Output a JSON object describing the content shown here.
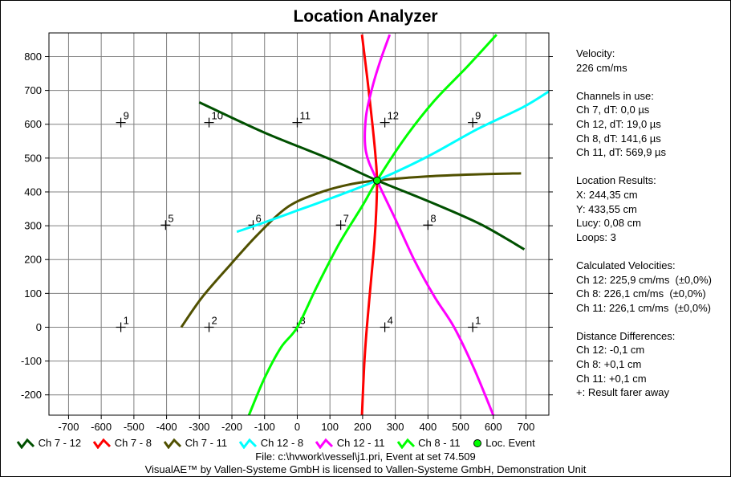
{
  "chart_data": {
    "type": "scatter",
    "title": "Location Analyzer",
    "xlim": [
      -760,
      770
    ],
    "ylim": [
      -260,
      870
    ],
    "x_ticks": [
      -700,
      -600,
      -500,
      -400,
      -300,
      -200,
      -100,
      0,
      100,
      200,
      300,
      400,
      500,
      600,
      700
    ],
    "y_ticks": [
      -200,
      -100,
      0,
      100,
      200,
      300,
      400,
      500,
      600,
      700,
      800
    ],
    "grid": true,
    "legend_position": "bottom",
    "sensors": [
      {
        "label": "9",
        "x": -540,
        "y": 605
      },
      {
        "label": "10",
        "x": -270,
        "y": 605
      },
      {
        "label": "11",
        "x": 0,
        "y": 605
      },
      {
        "label": "12",
        "x": 268,
        "y": 605
      },
      {
        "label": "9",
        "x": 537,
        "y": 605
      },
      {
        "label": "5",
        "x": -403,
        "y": 302
      },
      {
        "label": "6",
        "x": -135,
        "y": 302
      },
      {
        "label": "7",
        "x": 133,
        "y": 302
      },
      {
        "label": "8",
        "x": 400,
        "y": 302
      },
      {
        "label": "1",
        "x": -540,
        "y": 0
      },
      {
        "label": "2",
        "x": -270,
        "y": 0
      },
      {
        "label": "3",
        "x": 0,
        "y": 0
      },
      {
        "label": "4",
        "x": 268,
        "y": 0
      },
      {
        "label": "1",
        "x": 537,
        "y": 0
      }
    ],
    "series": [
      {
        "name": "Ch 7 - 12",
        "color": "#005000",
        "points": [
          [
            -300,
            665
          ],
          [
            -100,
            575
          ],
          [
            100,
            497
          ],
          [
            244,
            434
          ],
          [
            400,
            373
          ],
          [
            560,
            305
          ],
          [
            695,
            230
          ]
        ]
      },
      {
        "name": "Ch 7 - 8",
        "color": "#ff0000",
        "points": [
          [
            198,
            865
          ],
          [
            215,
            730
          ],
          [
            230,
            600
          ],
          [
            240,
            500
          ],
          [
            244,
            434
          ],
          [
            242,
            350
          ],
          [
            236,
            250
          ],
          [
            225,
            130
          ],
          [
            213,
            0
          ],
          [
            205,
            -110
          ],
          [
            198,
            -260
          ]
        ]
      },
      {
        "name": "Ch 7 - 11",
        "color": "#505000",
        "points": [
          [
            -355,
            0
          ],
          [
            -290,
            90
          ],
          [
            -200,
            190
          ],
          [
            -120,
            275
          ],
          [
            -30,
            355
          ],
          [
            60,
            395
          ],
          [
            150,
            420
          ],
          [
            244,
            434
          ],
          [
            400,
            446
          ],
          [
            550,
            452
          ],
          [
            685,
            455
          ]
        ]
      },
      {
        "name": "Ch 12 - 8",
        "color": "#00ffff",
        "points": [
          [
            -185,
            282
          ],
          [
            -100,
            310
          ],
          [
            0,
            345
          ],
          [
            100,
            380
          ],
          [
            244,
            434
          ],
          [
            400,
            505
          ],
          [
            550,
            585
          ],
          [
            690,
            650
          ],
          [
            770,
            697
          ]
        ]
      },
      {
        "name": "Ch 12 - 11",
        "color": "#ff00ff",
        "points": [
          [
            283,
            865
          ],
          [
            255,
            790
          ],
          [
            230,
            710
          ],
          [
            210,
            620
          ],
          [
            210,
            520
          ],
          [
            244,
            434
          ],
          [
            300,
            320
          ],
          [
            360,
            195
          ],
          [
            420,
            90
          ],
          [
            480,
            0
          ],
          [
            540,
            -120
          ],
          [
            600,
            -260
          ]
        ]
      },
      {
        "name": "Ch 8 - 11",
        "color": "#00ff00",
        "points": [
          [
            -148,
            -260
          ],
          [
            -100,
            -150
          ],
          [
            -50,
            -60
          ],
          [
            0,
            0
          ],
          [
            60,
            120
          ],
          [
            130,
            250
          ],
          [
            200,
            360
          ],
          [
            244,
            434
          ],
          [
            330,
            560
          ],
          [
            420,
            670
          ],
          [
            520,
            770
          ],
          [
            610,
            865
          ]
        ]
      }
    ],
    "location_event": {
      "label": "Loc. Event",
      "x": 244.35,
      "y": 433.55,
      "color": "#00ff00"
    }
  },
  "info": {
    "velocity": [
      "Velocity:",
      "226 cm/ms"
    ],
    "channels": [
      "Channels in use:",
      "Ch 7, dT: 0,0 µs",
      "Ch 12, dT: 19,0 µs",
      "Ch 8, dT: 141,6 µs",
      "Ch 11, dT: 569,9 µs"
    ],
    "location": [
      "Location Results:",
      "X: 244,35 cm",
      "Y: 433,55 cm",
      "Lucy: 0,08 cm",
      "Loops: 3"
    ],
    "velocities": [
      "Calculated Velocities:",
      "Ch 12: 225,9 cm/ms  (±0,0%)",
      "Ch 8: 226,1 cm/ms  (±0,0%)",
      "Ch 11: 226,1 cm/ms  (±0,0%)"
    ],
    "distances": [
      "Distance Differences:",
      "Ch 12: -0,1 cm",
      "Ch 8: +0,1 cm",
      "Ch 11: +0,1 cm",
      "+: Result farer away"
    ]
  },
  "footer": {
    "file": "File: c:\\hvwork\\vessel\\j1.pri, Event at set 74.509",
    "license": "VisualAE™ by Vallen-Systeme GmbH is licensed to Vallen-Systeme GmbH, Demonstration Unit"
  }
}
